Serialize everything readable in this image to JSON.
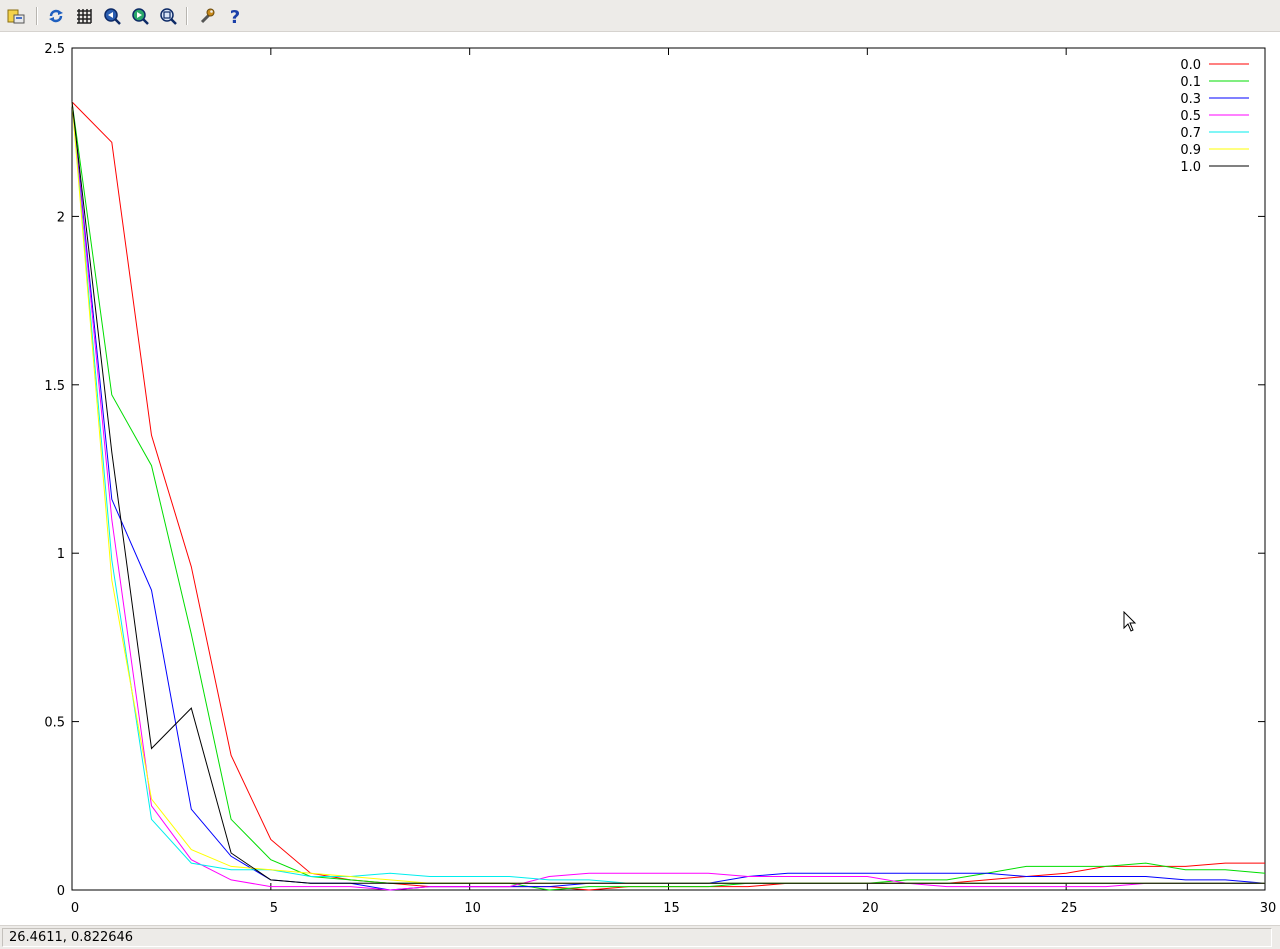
{
  "toolbar": {
    "buttons": [
      {
        "name": "export-button",
        "icon": "export-icon"
      },
      {
        "name": "replot-button",
        "icon": "replot-icon"
      },
      {
        "name": "grid-button",
        "icon": "grid-icon"
      },
      {
        "name": "zoom-back-button",
        "icon": "zoom-back-icon"
      },
      {
        "name": "zoom-next-button",
        "icon": "zoom-next-icon"
      },
      {
        "name": "unzoom-button",
        "icon": "unzoom-icon"
      },
      {
        "name": "options-button",
        "icon": "wrench-icon"
      },
      {
        "name": "help-button",
        "icon": "help-icon"
      }
    ]
  },
  "status": {
    "coordinates": "26.4611,  0.822646"
  },
  "chart_data": {
    "type": "line",
    "title": "",
    "xlabel": "",
    "ylabel": "",
    "xlim": [
      0,
      30
    ],
    "ylim": [
      0,
      2.5
    ],
    "x_ticks": [
      0,
      5,
      10,
      15,
      20,
      25,
      30
    ],
    "y_ticks": [
      0,
      0.5,
      1,
      1.5,
      2,
      2.5
    ],
    "x_tick_labels": [
      "0",
      "5",
      "10",
      "15",
      "20",
      "25",
      "30"
    ],
    "y_tick_labels": [
      "0",
      "0.5",
      "1",
      "1.5",
      "2",
      "2.5"
    ],
    "grid": false,
    "legend_position": "top-right",
    "x": [
      0,
      1,
      2,
      3,
      4,
      5,
      6,
      7,
      8,
      9,
      10,
      11,
      12,
      13,
      14,
      15,
      16,
      17,
      18,
      19,
      20,
      21,
      22,
      23,
      24,
      25,
      26,
      27,
      28,
      29,
      30
    ],
    "series": [
      {
        "name": "0.0",
        "color": "#ff0000",
        "values": [
          2.34,
          2.22,
          1.35,
          0.96,
          0.4,
          0.15,
          0.05,
          0.03,
          0.02,
          0.01,
          0.01,
          0.01,
          0.01,
          0.0,
          0.01,
          0.01,
          0.01,
          0.01,
          0.02,
          0.02,
          0.02,
          0.02,
          0.02,
          0.03,
          0.04,
          0.05,
          0.07,
          0.07,
          0.07,
          0.08,
          0.08
        ]
      },
      {
        "name": "0.1",
        "color": "#00dd00",
        "values": [
          2.34,
          1.47,
          1.26,
          0.76,
          0.21,
          0.09,
          0.04,
          0.03,
          0.02,
          0.02,
          0.02,
          0.02,
          0.0,
          0.01,
          0.01,
          0.01,
          0.01,
          0.02,
          0.02,
          0.02,
          0.02,
          0.03,
          0.03,
          0.05,
          0.07,
          0.07,
          0.07,
          0.08,
          0.06,
          0.06,
          0.05
        ]
      },
      {
        "name": "0.3",
        "color": "#0000ff",
        "values": [
          2.34,
          1.16,
          0.89,
          0.24,
          0.1,
          0.03,
          0.02,
          0.02,
          0.0,
          0.01,
          0.01,
          0.01,
          0.01,
          0.02,
          0.02,
          0.02,
          0.02,
          0.04,
          0.05,
          0.05,
          0.05,
          0.05,
          0.05,
          0.05,
          0.04,
          0.04,
          0.04,
          0.04,
          0.03,
          0.03,
          0.02
        ]
      },
      {
        "name": "0.5",
        "color": "#ff00ff",
        "values": [
          2.34,
          1.1,
          0.25,
          0.09,
          0.03,
          0.01,
          0.01,
          0.01,
          0.0,
          0.01,
          0.01,
          0.01,
          0.04,
          0.05,
          0.05,
          0.05,
          0.05,
          0.04,
          0.04,
          0.04,
          0.04,
          0.02,
          0.01,
          0.01,
          0.01,
          0.01,
          0.01,
          0.02,
          0.02,
          0.02,
          0.02
        ]
      },
      {
        "name": "0.7",
        "color": "#00eeee",
        "values": [
          2.34,
          0.98,
          0.21,
          0.08,
          0.06,
          0.06,
          0.04,
          0.04,
          0.05,
          0.04,
          0.04,
          0.04,
          0.03,
          0.03,
          0.02,
          0.02,
          0.02,
          0.02,
          0.02,
          0.02,
          0.02,
          0.02,
          0.02,
          0.02,
          0.02,
          0.02,
          0.02,
          0.02,
          0.02,
          0.02,
          0.02
        ]
      },
      {
        "name": "0.9",
        "color": "#ffff00",
        "values": [
          2.34,
          0.92,
          0.27,
          0.12,
          0.07,
          0.06,
          0.05,
          0.04,
          0.03,
          0.02,
          0.02,
          0.02,
          0.02,
          0.02,
          0.02,
          0.02,
          0.02,
          0.02,
          0.02,
          0.02,
          0.02,
          0.02,
          0.02,
          0.02,
          0.02,
          0.02,
          0.02,
          0.02,
          0.02,
          0.02,
          0.02
        ]
      },
      {
        "name": "1.0",
        "color": "#000000",
        "values": [
          2.34,
          1.3,
          0.42,
          0.54,
          0.11,
          0.03,
          0.02,
          0.02,
          0.02,
          0.02,
          0.02,
          0.02,
          0.02,
          0.02,
          0.02,
          0.02,
          0.02,
          0.02,
          0.02,
          0.02,
          0.02,
          0.02,
          0.02,
          0.02,
          0.02,
          0.02,
          0.02,
          0.02,
          0.02,
          0.02,
          0.02
        ]
      }
    ]
  }
}
